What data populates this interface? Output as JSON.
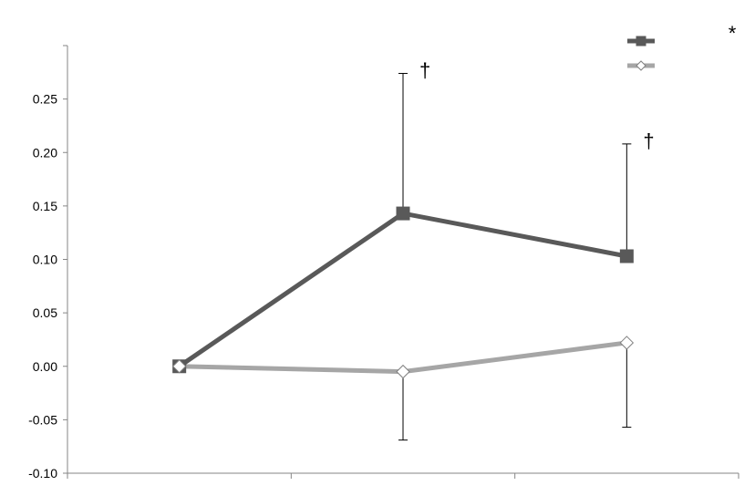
{
  "chart_data": {
    "type": "line",
    "x": [
      1,
      2,
      3
    ],
    "xlim": [
      0.5,
      3.5
    ],
    "ylim": [
      -0.1,
      0.3
    ],
    "ytick_labels": [
      "-0.10",
      "-0.05",
      "0.00",
      "0.05",
      "0.10",
      "0.15",
      "0.20",
      "0.25"
    ],
    "ytick_values": [
      -0.1,
      -0.05,
      0.0,
      0.05,
      0.1,
      0.15,
      0.2,
      0.25
    ],
    "series": [
      {
        "marker": "square",
        "color": "#595959",
        "values": [
          0.0,
          0.143,
          0.103
        ],
        "error_upper": [
          null,
          0.274,
          0.208
        ],
        "error_lower": [
          null,
          null,
          null
        ]
      },
      {
        "marker": "diamond",
        "color": "#a6a6a6",
        "values": [
          0.0,
          -0.005,
          0.022
        ],
        "error_upper": [
          null,
          null,
          null
        ],
        "error_lower": [
          null,
          -0.069,
          -0.057
        ]
      }
    ],
    "annotations": [
      {
        "text": "†",
        "x": 2,
        "y": 0.274
      },
      {
        "text": "†",
        "x": 3,
        "y": 0.208
      },
      {
        "text": "*",
        "at": "legend"
      }
    ],
    "legend_position": "top-right",
    "grid": false
  }
}
